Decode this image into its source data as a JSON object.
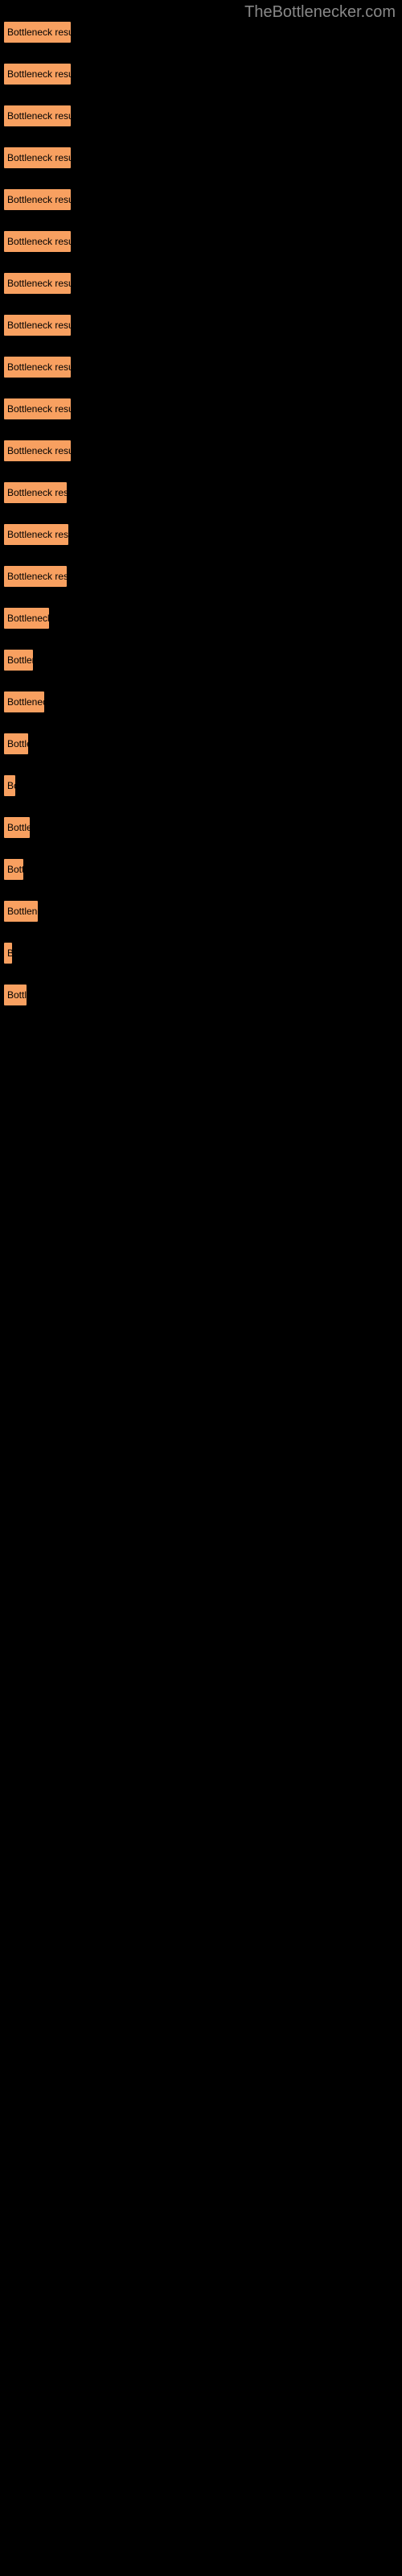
{
  "watermark": "TheBottlenecker.com",
  "items": [
    {
      "label": "Bottleneck result",
      "width": 85
    },
    {
      "label": "Bottleneck result",
      "width": 85
    },
    {
      "label": "Bottleneck result",
      "width": 85
    },
    {
      "label": "Bottleneck result",
      "width": 85
    },
    {
      "label": "Bottleneck result",
      "width": 85
    },
    {
      "label": "Bottleneck result",
      "width": 85
    },
    {
      "label": "Bottleneck result",
      "width": 85
    },
    {
      "label": "Bottleneck result",
      "width": 85
    },
    {
      "label": "Bottleneck result",
      "width": 85
    },
    {
      "label": "Bottleneck result",
      "width": 85
    },
    {
      "label": "Bottleneck result",
      "width": 85
    },
    {
      "label": "Bottleneck result",
      "width": 80
    },
    {
      "label": "Bottleneck result",
      "width": 82
    },
    {
      "label": "Bottleneck result",
      "width": 80
    },
    {
      "label": "Bottleneck result",
      "width": 58
    },
    {
      "label": "Bottleneck result",
      "width": 38
    },
    {
      "label": "Bottleneck result",
      "width": 52
    },
    {
      "label": "Bottleneck result",
      "width": 32
    },
    {
      "label": "Bottleneck result",
      "width": 16
    },
    {
      "label": "Bottleneck result",
      "width": 34
    },
    {
      "label": "Bottleneck result",
      "width": 26
    },
    {
      "label": "Bottleneck result",
      "width": 44
    },
    {
      "label": "Bottleneck result",
      "width": 12
    },
    {
      "label": "Bottleneck result",
      "width": 30
    }
  ],
  "bar_color": "#f8a060",
  "background_color": "#000000"
}
